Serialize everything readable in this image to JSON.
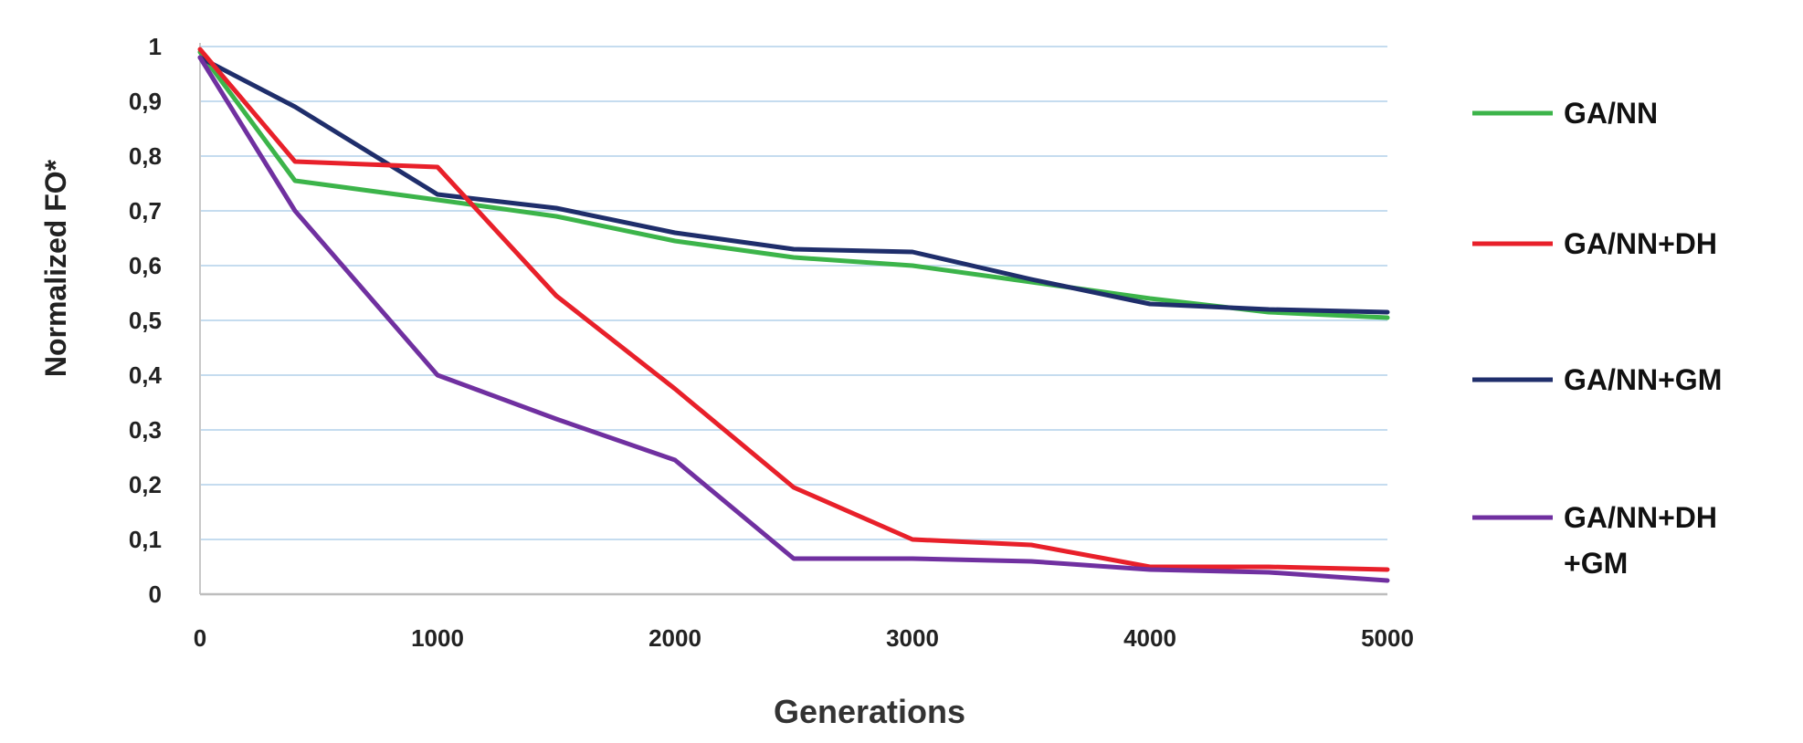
{
  "chart_data": {
    "type": "line",
    "xlabel": "Generations",
    "ylabel": "Normalized  FO*",
    "xlim": [
      0,
      5000
    ],
    "ylim": [
      0,
      1
    ],
    "x_ticks": [
      0,
      1000,
      2000,
      3000,
      4000,
      5000
    ],
    "x_tick_labels": [
      "0",
      "1000",
      "2000",
      "3000",
      "4000",
      "5000"
    ],
    "y_ticks": [
      0,
      0.1,
      0.2,
      0.3,
      0.4,
      0.5,
      0.6,
      0.7,
      0.8,
      0.9,
      1
    ],
    "y_tick_labels": [
      "0",
      "0,1",
      "0,2",
      "0,3",
      "0,4",
      "0,5",
      "0,6",
      "0,7",
      "0,8",
      "0,9",
      "1"
    ],
    "grid": "horizontal",
    "legend_position": "right",
    "series": [
      {
        "name": "GA/NN",
        "color": "#3cb44a",
        "x": [
          0,
          400,
          1000,
          1500,
          2000,
          2500,
          3000,
          3500,
          4000,
          4500,
          5000
        ],
        "values": [
          0.99,
          0.755,
          0.72,
          0.69,
          0.645,
          0.615,
          0.6,
          0.57,
          0.54,
          0.515,
          0.505
        ]
      },
      {
        "name": "GA/NN+DH",
        "color": "#e8202a",
        "x": [
          0,
          400,
          1000,
          1500,
          2000,
          2500,
          3000,
          3500,
          4000,
          4500,
          5000
        ],
        "values": [
          0.995,
          0.79,
          0.78,
          0.545,
          0.375,
          0.195,
          0.1,
          0.09,
          0.05,
          0.05,
          0.045
        ]
      },
      {
        "name": "GA/NN+GM",
        "color": "#1f2e6b",
        "x": [
          0,
          400,
          1000,
          1500,
          2000,
          2500,
          3000,
          3500,
          4000,
          4500,
          5000
        ],
        "values": [
          0.98,
          0.89,
          0.73,
          0.705,
          0.66,
          0.63,
          0.625,
          0.575,
          0.53,
          0.52,
          0.515
        ]
      },
      {
        "name": "GA/NN+DH+GM",
        "legend_lines": [
          "GA/NN+DH",
          "+GM"
        ],
        "color": "#7030a0",
        "x": [
          0,
          400,
          1000,
          1500,
          2000,
          2500,
          3000,
          3500,
          4000,
          4500,
          5000
        ],
        "values": [
          0.98,
          0.7,
          0.4,
          0.32,
          0.245,
          0.065,
          0.065,
          0.06,
          0.045,
          0.04,
          0.025
        ]
      }
    ]
  }
}
